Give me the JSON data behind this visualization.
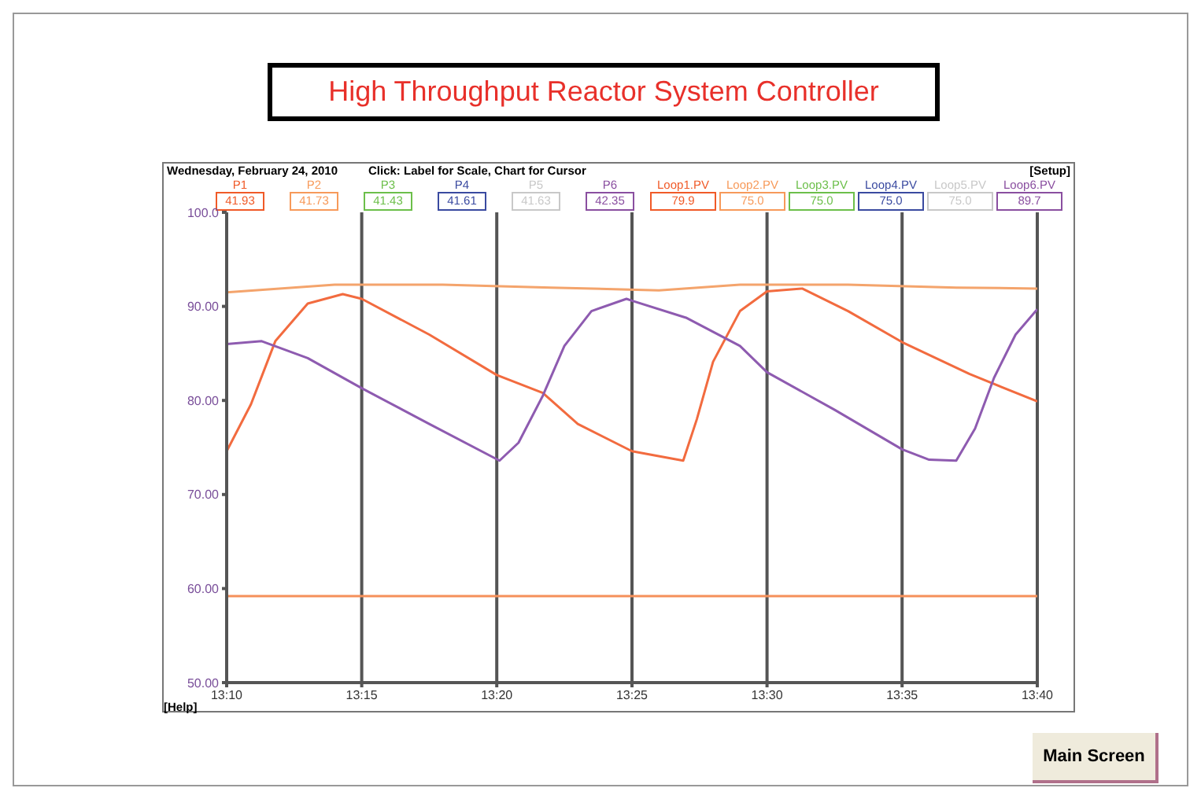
{
  "chart_data": {
    "type": "line",
    "title": "High Throughput Reactor System Controller",
    "annotations": [
      "Wednesday, February 24, 2010",
      "Click: Label for Scale, Chart for Cursor",
      "[Setup]",
      "P1",
      "41.93",
      "P2",
      "41.73",
      "P3",
      "41.43",
      "P4",
      "41.61",
      "P5",
      "41.63",
      "P6",
      "42.35",
      "Loop1.PV",
      "79.9",
      "Loop2.PV",
      "75.0",
      "Loop3.PV",
      "75.0",
      "Loop4.PV",
      "75.0",
      "Loop5.PV",
      "75.0",
      "Loop6.PV",
      "89.7",
      "[Help]",
      "Main Screen"
    ],
    "xlim": [
      13.1667,
      13.6667
    ],
    "xticks": [
      {
        "value": 13.1667,
        "label": "13:10"
      },
      {
        "value": 13.25,
        "label": "13:15"
      },
      {
        "value": 13.3333,
        "label": "13:20"
      },
      {
        "value": 13.4167,
        "label": "13:25"
      },
      {
        "value": 13.5,
        "label": "13:30"
      },
      {
        "value": 13.5833,
        "label": "13:35"
      },
      {
        "value": 13.6667,
        "label": "13:40"
      }
    ],
    "ylim": [
      50,
      100
    ],
    "yticks": [
      {
        "value": 50,
        "label": "50.00"
      },
      {
        "value": 60,
        "label": "60.00"
      },
      {
        "value": 70,
        "label": "70.00"
      },
      {
        "value": 80,
        "label": "80.00"
      },
      {
        "value": 90,
        "label": "90.00"
      },
      {
        "value": 100,
        "label": "100.0"
      }
    ],
    "grid": "x",
    "legend": false,
    "marker": "none",
    "line_style": "solid",
    "series": [
      {
        "color": "#f4a46c",
        "x": [
          13.1667,
          13.2333,
          13.3,
          13.3667,
          13.4333,
          13.4833,
          13.55,
          13.6167,
          13.6667
        ],
        "values": [
          91.5,
          92.3,
          92.3,
          92.0,
          91.7,
          92.3,
          92.3,
          92.0,
          91.9
        ]
      },
      {
        "color": "#f26b3f",
        "x": [
          13.1667,
          13.1817,
          13.1967,
          13.2167,
          13.2383,
          13.25,
          13.2917,
          13.3333,
          13.3617,
          13.3833,
          13.4167,
          13.4483,
          13.4567,
          13.4667,
          13.4833,
          13.5,
          13.5217,
          13.55,
          13.5833,
          13.625,
          13.6667
        ],
        "values": [
          74.6,
          79.6,
          86.3,
          90.3,
          91.3,
          90.8,
          87.0,
          82.7,
          80.8,
          77.5,
          74.6,
          73.6,
          78,
          84.1,
          89.5,
          91.6,
          91.9,
          89.5,
          86.2,
          82.8,
          79.9
        ]
      },
      {
        "color": "#8e5bb0",
        "x": [
          13.1667,
          13.1883,
          13.2167,
          13.25,
          13.2917,
          13.335,
          13.3467,
          13.3617,
          13.375,
          13.3917,
          13.4133,
          13.4167,
          13.45,
          13.4833,
          13.5,
          13.5417,
          13.5833,
          13.6,
          13.6167,
          13.6283,
          13.64,
          13.6533,
          13.6667
        ],
        "values": [
          86.0,
          86.3,
          84.5,
          81.3,
          77.5,
          73.6,
          75.5,
          80.5,
          85.8,
          89.5,
          90.8,
          90.6,
          88.8,
          85.8,
          83.0,
          79.0,
          74.8,
          73.7,
          73.6,
          77,
          82.4,
          87,
          89.7
        ]
      },
      {
        "color": "#f5905a",
        "x": [
          13.1667,
          13.6667
        ],
        "values": [
          59.2,
          59.2
        ]
      }
    ]
  }
}
